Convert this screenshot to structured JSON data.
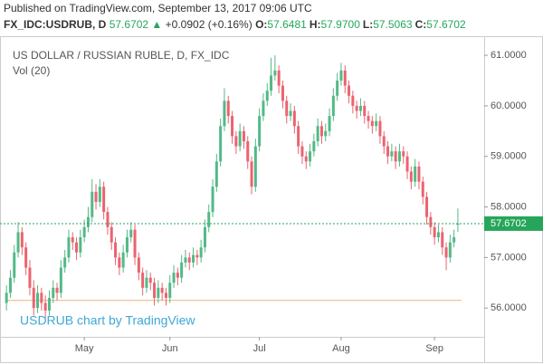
{
  "header": {
    "published": "Published on TradingView.com, September 13, 2017 09:06 UTC",
    "symbol": "FX_IDC:USDRUB, D",
    "price": "57.6702",
    "change": "+0.0902 (+0.16%)",
    "ohlc": [
      {
        "label": "O:",
        "value": "57.6481"
      },
      {
        "label": "H:",
        "value": "57.9700"
      },
      {
        "label": "L:",
        "value": "57.5063"
      },
      {
        "label": "C:",
        "value": "57.6702"
      }
    ]
  },
  "chart_data": {
    "type": "candlestick",
    "title": "US DOLLAR / RUSSIAN RUBLE, D, FX_IDC",
    "indicator": "Vol (20)",
    "watermark": "USDRUB chart by TradingView",
    "up_color": "#53b987",
    "down_color": "#eb6370",
    "last_label": "57.6702",
    "last_color": "#26a65b",
    "hline": 56.15,
    "hline_color": "#f0b27a",
    "ylim": [
      55.43,
      61.36
    ],
    "yticks": [
      {
        "value": 56,
        "label": "56.0000"
      },
      {
        "value": 57,
        "label": "57.0000"
      },
      {
        "value": 58,
        "label": "58.0000"
      },
      {
        "value": 59,
        "label": "59.0000"
      },
      {
        "value": 60,
        "label": "60.0000"
      },
      {
        "value": 61,
        "label": "61.0000"
      }
    ],
    "xticks": [
      {
        "value": 20,
        "label": "May"
      },
      {
        "value": 42,
        "label": "Jun"
      },
      {
        "value": 65,
        "label": "Jul"
      },
      {
        "value": 86,
        "label": "Aug"
      },
      {
        "value": 110,
        "label": "Sep"
      }
    ],
    "candles": [
      [
        56.1,
        56.45,
        55.95,
        56.3
      ],
      [
        56.3,
        56.75,
        56.2,
        56.6
      ],
      [
        56.6,
        57.25,
        56.5,
        57.1
      ],
      [
        57.1,
        57.7,
        57.0,
        57.5
      ],
      [
        57.5,
        57.6,
        57.05,
        57.2
      ],
      [
        57.2,
        57.3,
        56.65,
        56.8
      ],
      [
        56.8,
        56.95,
        56.25,
        56.4
      ],
      [
        56.4,
        56.55,
        55.85,
        56.0
      ],
      [
        56.0,
        56.45,
        55.9,
        56.3
      ],
      [
        56.3,
        56.4,
        55.95,
        56.1
      ],
      [
        56.1,
        56.25,
        55.8,
        55.95
      ],
      [
        55.95,
        56.35,
        55.85,
        56.2
      ],
      [
        56.2,
        56.55,
        56.1,
        56.4
      ],
      [
        56.4,
        56.5,
        56.15,
        56.3
      ],
      [
        56.3,
        56.95,
        56.2,
        56.8
      ],
      [
        56.8,
        57.15,
        56.7,
        57.0
      ],
      [
        57.0,
        57.55,
        56.9,
        57.4
      ],
      [
        57.4,
        57.5,
        57.15,
        57.3
      ],
      [
        57.3,
        57.4,
        56.95,
        57.1
      ],
      [
        57.1,
        57.55,
        57.0,
        57.4
      ],
      [
        57.4,
        57.75,
        57.3,
        57.6
      ],
      [
        57.6,
        58.0,
        57.5,
        57.8
      ],
      [
        57.8,
        58.55,
        57.7,
        58.3
      ],
      [
        58.3,
        58.45,
        57.95,
        58.1
      ],
      [
        58.1,
        58.55,
        58.0,
        58.4
      ],
      [
        58.4,
        58.5,
        57.75,
        57.9
      ],
      [
        57.9,
        58.0,
        57.45,
        57.6
      ],
      [
        57.6,
        57.7,
        57.15,
        57.3
      ],
      [
        57.3,
        57.4,
        56.85,
        57.0
      ],
      [
        57.0,
        57.1,
        56.65,
        56.8
      ],
      [
        56.8,
        57.25,
        56.7,
        57.1
      ],
      [
        57.1,
        57.55,
        57.0,
        57.4
      ],
      [
        57.4,
        57.7,
        57.3,
        57.55
      ],
      [
        57.55,
        57.65,
        56.85,
        57.0
      ],
      [
        57.0,
        57.1,
        56.55,
        56.7
      ],
      [
        56.7,
        56.8,
        56.25,
        56.4
      ],
      [
        56.4,
        56.75,
        56.3,
        56.6
      ],
      [
        56.6,
        56.7,
        56.35,
        56.5
      ],
      [
        56.5,
        56.6,
        56.05,
        56.2
      ],
      [
        56.2,
        56.55,
        56.1,
        56.4
      ],
      [
        56.4,
        56.5,
        56.15,
        56.3
      ],
      [
        56.3,
        56.4,
        56.05,
        56.2
      ],
      [
        56.2,
        56.65,
        56.1,
        56.5
      ],
      [
        56.5,
        56.85,
        56.4,
        56.7
      ],
      [
        56.7,
        56.8,
        56.45,
        56.6
      ],
      [
        56.6,
        57.05,
        56.5,
        56.9
      ],
      [
        56.9,
        57.15,
        56.8,
        57.0
      ],
      [
        57.0,
        57.1,
        56.75,
        56.9
      ],
      [
        56.9,
        57.2,
        56.8,
        57.05
      ],
      [
        57.05,
        57.15,
        56.85,
        57.0
      ],
      [
        57.0,
        57.35,
        56.9,
        57.2
      ],
      [
        57.2,
        57.75,
        57.1,
        57.6
      ],
      [
        57.6,
        58.05,
        57.5,
        57.9
      ],
      [
        57.9,
        58.55,
        57.8,
        58.4
      ],
      [
        58.4,
        59.05,
        58.3,
        58.9
      ],
      [
        58.9,
        59.75,
        58.8,
        59.6
      ],
      [
        59.6,
        60.35,
        59.5,
        60.1
      ],
      [
        60.1,
        60.2,
        59.65,
        59.8
      ],
      [
        59.8,
        59.9,
        59.25,
        59.4
      ],
      [
        59.4,
        59.5,
        59.05,
        59.2
      ],
      [
        59.2,
        59.65,
        59.1,
        59.5
      ],
      [
        59.5,
        59.6,
        59.15,
        59.3
      ],
      [
        59.3,
        59.4,
        58.75,
        58.9
      ],
      [
        58.9,
        59.0,
        58.25,
        58.4
      ],
      [
        58.4,
        59.35,
        58.3,
        59.2
      ],
      [
        59.2,
        59.95,
        59.1,
        59.8
      ],
      [
        59.8,
        60.25,
        59.7,
        60.1
      ],
      [
        60.1,
        60.45,
        60.0,
        60.3
      ],
      [
        60.3,
        60.95,
        60.2,
        60.6
      ],
      [
        60.6,
        61.0,
        60.5,
        60.7
      ],
      [
        60.7,
        60.8,
        60.25,
        60.4
      ],
      [
        60.4,
        60.5,
        59.95,
        60.1
      ],
      [
        60.1,
        60.2,
        59.65,
        59.8
      ],
      [
        59.8,
        60.05,
        59.7,
        59.9
      ],
      [
        59.9,
        60.0,
        59.45,
        59.6
      ],
      [
        59.6,
        59.7,
        59.05,
        59.2
      ],
      [
        59.2,
        59.3,
        58.85,
        59.0
      ],
      [
        59.0,
        59.1,
        58.75,
        58.9
      ],
      [
        58.9,
        59.25,
        58.8,
        59.1
      ],
      [
        59.1,
        59.45,
        59.0,
        59.3
      ],
      [
        59.3,
        59.75,
        59.2,
        59.6
      ],
      [
        59.6,
        59.7,
        59.25,
        59.4
      ],
      [
        59.4,
        59.65,
        59.3,
        59.5
      ],
      [
        59.5,
        59.95,
        59.4,
        59.8
      ],
      [
        59.8,
        60.35,
        59.7,
        60.2
      ],
      [
        60.2,
        60.65,
        60.1,
        60.5
      ],
      [
        60.5,
        60.85,
        60.4,
        60.7
      ],
      [
        60.7,
        60.8,
        60.25,
        60.4
      ],
      [
        60.4,
        60.5,
        60.05,
        60.2
      ],
      [
        60.2,
        60.3,
        59.85,
        60.0
      ],
      [
        60.0,
        60.1,
        59.75,
        59.9
      ],
      [
        59.9,
        60.15,
        59.8,
        60.0
      ],
      [
        60.0,
        60.1,
        59.65,
        59.8
      ],
      [
        59.8,
        59.9,
        59.55,
        59.7
      ],
      [
        59.7,
        59.8,
        59.45,
        59.6
      ],
      [
        59.6,
        59.85,
        59.5,
        59.7
      ],
      [
        59.7,
        59.8,
        59.25,
        59.4
      ],
      [
        59.4,
        59.5,
        59.05,
        59.2
      ],
      [
        59.2,
        59.3,
        58.85,
        59.0
      ],
      [
        59.0,
        59.25,
        58.9,
        59.1
      ],
      [
        59.1,
        59.2,
        58.75,
        58.9
      ],
      [
        58.9,
        59.25,
        58.8,
        59.1
      ],
      [
        59.1,
        59.2,
        58.85,
        59.0
      ],
      [
        59.0,
        59.1,
        58.55,
        58.7
      ],
      [
        58.7,
        58.8,
        58.35,
        58.5
      ],
      [
        58.5,
        58.95,
        58.4,
        58.8
      ],
      [
        58.8,
        58.9,
        58.35,
        58.5
      ],
      [
        58.5,
        58.6,
        58.05,
        58.2
      ],
      [
        58.2,
        58.3,
        57.65,
        57.8
      ],
      [
        57.8,
        57.9,
        57.45,
        57.6
      ],
      [
        57.6,
        57.7,
        57.25,
        57.4
      ],
      [
        57.4,
        57.65,
        57.3,
        57.5
      ],
      [
        57.5,
        57.6,
        57.05,
        57.2
      ],
      [
        57.2,
        57.3,
        56.75,
        57.0
      ],
      [
        57.0,
        57.45,
        56.9,
        57.3
      ],
      [
        57.3,
        57.55,
        57.2,
        57.4
      ],
      [
        57.6481,
        57.97,
        57.5063,
        57.6702
      ]
    ]
  }
}
